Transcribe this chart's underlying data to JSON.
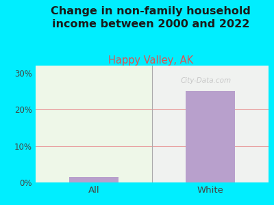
{
  "title": "Change in non-family household\nincome between 2000 and 2022",
  "subtitle": "Happy Valley, AK",
  "categories": [
    "All",
    "White"
  ],
  "values": [
    1.5,
    25.0
  ],
  "bar_color": "#b8a0cc",
  "title_fontsize": 11.5,
  "subtitle_fontsize": 10.5,
  "subtitle_color": "#e05050",
  "title_color": "#1a1a1a",
  "background_outer": "#00eeff",
  "background_inner": "#eef7e8",
  "background_inner_right": "#f2f0f6",
  "ytick_labels": [
    "0%",
    "10%",
    "20%",
    "30%"
  ],
  "ytick_values": [
    0,
    10,
    20,
    30
  ],
  "ylim": [
    0,
    32
  ],
  "grid_color": "#e8a0a0",
  "watermark": "City-Data.com"
}
